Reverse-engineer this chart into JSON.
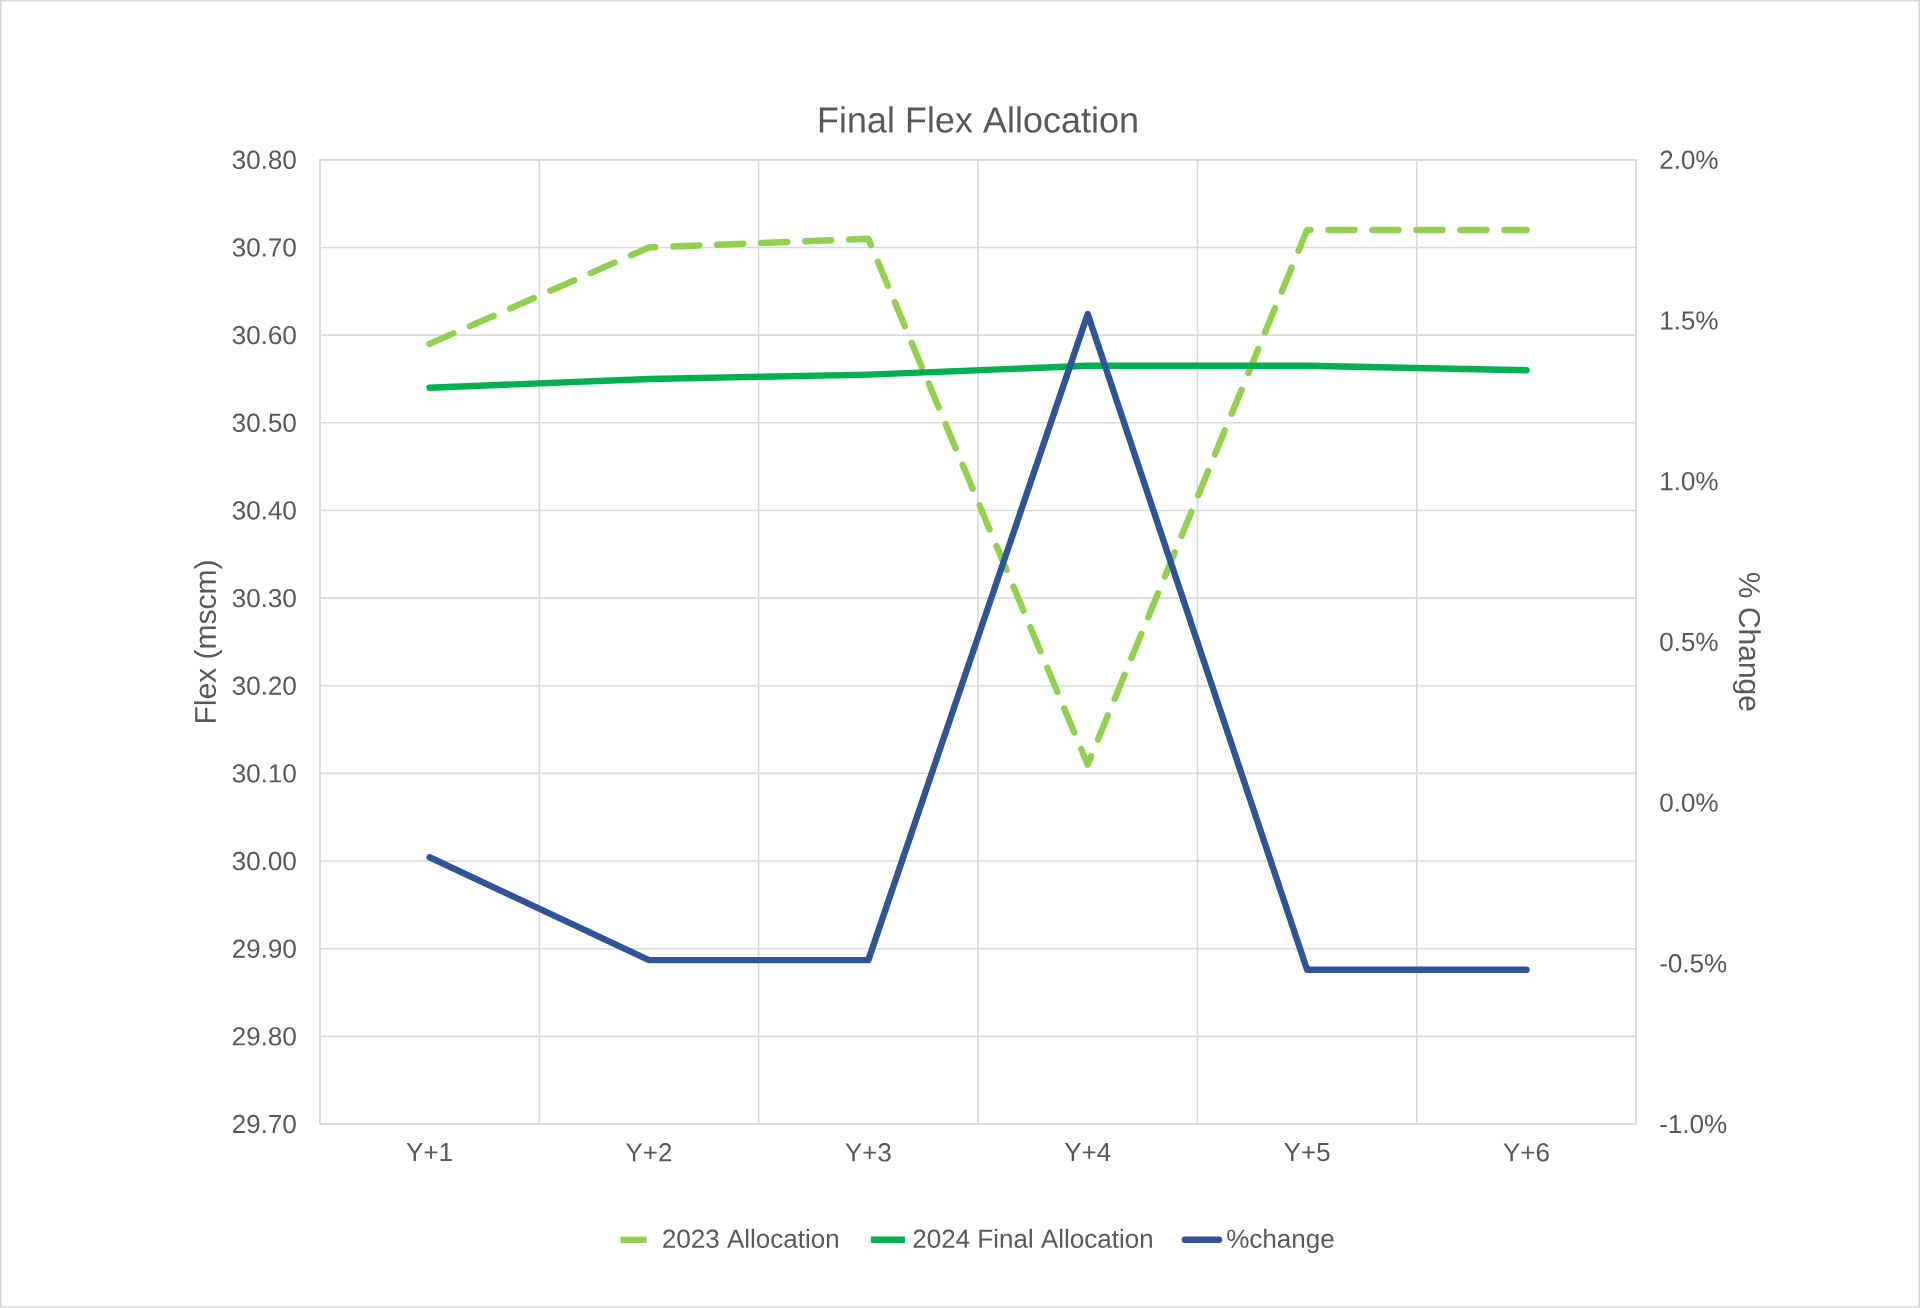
{
  "chart_data": {
    "type": "line",
    "title": "Final Flex Allocation",
    "ylabel": "Flex (mscm)",
    "y2label": "% Change",
    "categories": [
      "Y+1",
      "Y+2",
      "Y+3",
      "Y+4",
      "Y+5",
      "Y+6"
    ],
    "series": [
      {
        "name": "2023 Allocation",
        "color": "#92d050",
        "line_style": "dashed",
        "values": [
          30.59,
          30.7,
          30.71,
          30.11,
          30.72,
          30.72
        ]
      },
      {
        "name": "2024 Final Allocation",
        "color": "#00b050",
        "line_style": "solid",
        "values": [
          30.54,
          30.55,
          30.555,
          30.565,
          30.565,
          30.56
        ]
      },
      {
        "name": "%change",
        "color": "#2f5597",
        "line_style": "solid",
        "axis": "y2",
        "values": [
          -0.17,
          -0.49,
          -0.49,
          1.52,
          -0.52,
          -0.52
        ]
      }
    ],
    "ylim": [
      29.7,
      30.8
    ],
    "yticks": [
      {
        "value": 29.7,
        "label": "29.70"
      },
      {
        "value": 29.8,
        "label": "29.80"
      },
      {
        "value": 29.9,
        "label": "29.90"
      },
      {
        "value": 30.0,
        "label": "30.00"
      },
      {
        "value": 30.1,
        "label": "30.10"
      },
      {
        "value": 30.2,
        "label": "30.20"
      },
      {
        "value": 30.3,
        "label": "30.30"
      },
      {
        "value": 30.4,
        "label": "30.40"
      },
      {
        "value": 30.5,
        "label": "30.50"
      },
      {
        "value": 30.6,
        "label": "30.60"
      },
      {
        "value": 30.7,
        "label": "30.70"
      },
      {
        "value": 30.8,
        "label": "30.80"
      }
    ],
    "y2lim": [
      -1.0,
      2.0
    ],
    "y2ticks": [
      {
        "value": -1.0,
        "label": "-1.0%"
      },
      {
        "value": -0.5,
        "label": "-0.5%"
      },
      {
        "value": 0.0,
        "label": "0.0%"
      },
      {
        "value": 0.5,
        "label": "0.5%"
      },
      {
        "value": 1.0,
        "label": "1.0%"
      },
      {
        "value": 1.5,
        "label": "1.5%"
      },
      {
        "value": 2.0,
        "label": "2.0%"
      }
    ],
    "grid": true,
    "legend": "bottom",
    "marker": "none"
  }
}
